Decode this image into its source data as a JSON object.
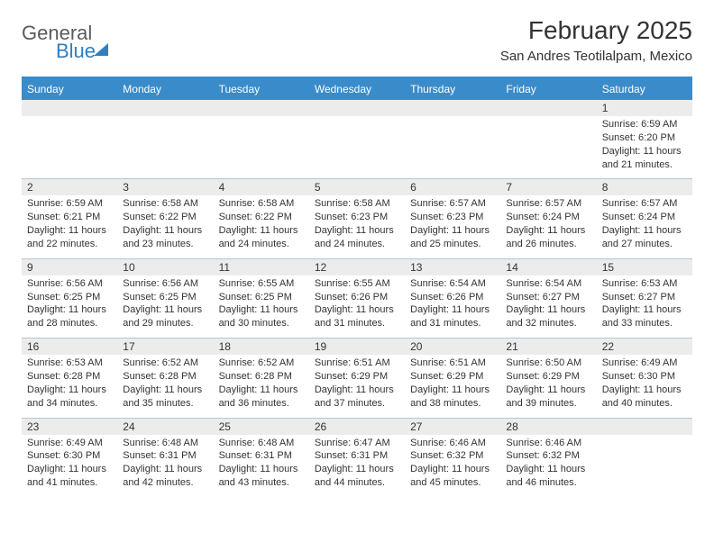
{
  "logo": {
    "text_gray": "General",
    "text_blue": "Blue"
  },
  "title": "February 2025",
  "location": "San Andres Teotilalpam, Mexico",
  "colors": {
    "header_bg": "#3a8bc9",
    "header_text": "#ffffff",
    "daynum_bg": "#ececec",
    "border": "#b8c5d0",
    "text": "#333333",
    "logo_gray": "#5a5a5a",
    "logo_blue": "#2f7fc2"
  },
  "day_headers": [
    "Sunday",
    "Monday",
    "Tuesday",
    "Wednesday",
    "Thursday",
    "Friday",
    "Saturday"
  ],
  "weeks": [
    [
      {
        "n": "",
        "sr": "",
        "ss": "",
        "dl": ""
      },
      {
        "n": "",
        "sr": "",
        "ss": "",
        "dl": ""
      },
      {
        "n": "",
        "sr": "",
        "ss": "",
        "dl": ""
      },
      {
        "n": "",
        "sr": "",
        "ss": "",
        "dl": ""
      },
      {
        "n": "",
        "sr": "",
        "ss": "",
        "dl": ""
      },
      {
        "n": "",
        "sr": "",
        "ss": "",
        "dl": ""
      },
      {
        "n": "1",
        "sr": "Sunrise: 6:59 AM",
        "ss": "Sunset: 6:20 PM",
        "dl": "Daylight: 11 hours and 21 minutes."
      }
    ],
    [
      {
        "n": "2",
        "sr": "Sunrise: 6:59 AM",
        "ss": "Sunset: 6:21 PM",
        "dl": "Daylight: 11 hours and 22 minutes."
      },
      {
        "n": "3",
        "sr": "Sunrise: 6:58 AM",
        "ss": "Sunset: 6:22 PM",
        "dl": "Daylight: 11 hours and 23 minutes."
      },
      {
        "n": "4",
        "sr": "Sunrise: 6:58 AM",
        "ss": "Sunset: 6:22 PM",
        "dl": "Daylight: 11 hours and 24 minutes."
      },
      {
        "n": "5",
        "sr": "Sunrise: 6:58 AM",
        "ss": "Sunset: 6:23 PM",
        "dl": "Daylight: 11 hours and 24 minutes."
      },
      {
        "n": "6",
        "sr": "Sunrise: 6:57 AM",
        "ss": "Sunset: 6:23 PM",
        "dl": "Daylight: 11 hours and 25 minutes."
      },
      {
        "n": "7",
        "sr": "Sunrise: 6:57 AM",
        "ss": "Sunset: 6:24 PM",
        "dl": "Daylight: 11 hours and 26 minutes."
      },
      {
        "n": "8",
        "sr": "Sunrise: 6:57 AM",
        "ss": "Sunset: 6:24 PM",
        "dl": "Daylight: 11 hours and 27 minutes."
      }
    ],
    [
      {
        "n": "9",
        "sr": "Sunrise: 6:56 AM",
        "ss": "Sunset: 6:25 PM",
        "dl": "Daylight: 11 hours and 28 minutes."
      },
      {
        "n": "10",
        "sr": "Sunrise: 6:56 AM",
        "ss": "Sunset: 6:25 PM",
        "dl": "Daylight: 11 hours and 29 minutes."
      },
      {
        "n": "11",
        "sr": "Sunrise: 6:55 AM",
        "ss": "Sunset: 6:25 PM",
        "dl": "Daylight: 11 hours and 30 minutes."
      },
      {
        "n": "12",
        "sr": "Sunrise: 6:55 AM",
        "ss": "Sunset: 6:26 PM",
        "dl": "Daylight: 11 hours and 31 minutes."
      },
      {
        "n": "13",
        "sr": "Sunrise: 6:54 AM",
        "ss": "Sunset: 6:26 PM",
        "dl": "Daylight: 11 hours and 31 minutes."
      },
      {
        "n": "14",
        "sr": "Sunrise: 6:54 AM",
        "ss": "Sunset: 6:27 PM",
        "dl": "Daylight: 11 hours and 32 minutes."
      },
      {
        "n": "15",
        "sr": "Sunrise: 6:53 AM",
        "ss": "Sunset: 6:27 PM",
        "dl": "Daylight: 11 hours and 33 minutes."
      }
    ],
    [
      {
        "n": "16",
        "sr": "Sunrise: 6:53 AM",
        "ss": "Sunset: 6:28 PM",
        "dl": "Daylight: 11 hours and 34 minutes."
      },
      {
        "n": "17",
        "sr": "Sunrise: 6:52 AM",
        "ss": "Sunset: 6:28 PM",
        "dl": "Daylight: 11 hours and 35 minutes."
      },
      {
        "n": "18",
        "sr": "Sunrise: 6:52 AM",
        "ss": "Sunset: 6:28 PM",
        "dl": "Daylight: 11 hours and 36 minutes."
      },
      {
        "n": "19",
        "sr": "Sunrise: 6:51 AM",
        "ss": "Sunset: 6:29 PM",
        "dl": "Daylight: 11 hours and 37 minutes."
      },
      {
        "n": "20",
        "sr": "Sunrise: 6:51 AM",
        "ss": "Sunset: 6:29 PM",
        "dl": "Daylight: 11 hours and 38 minutes."
      },
      {
        "n": "21",
        "sr": "Sunrise: 6:50 AM",
        "ss": "Sunset: 6:29 PM",
        "dl": "Daylight: 11 hours and 39 minutes."
      },
      {
        "n": "22",
        "sr": "Sunrise: 6:49 AM",
        "ss": "Sunset: 6:30 PM",
        "dl": "Daylight: 11 hours and 40 minutes."
      }
    ],
    [
      {
        "n": "23",
        "sr": "Sunrise: 6:49 AM",
        "ss": "Sunset: 6:30 PM",
        "dl": "Daylight: 11 hours and 41 minutes."
      },
      {
        "n": "24",
        "sr": "Sunrise: 6:48 AM",
        "ss": "Sunset: 6:31 PM",
        "dl": "Daylight: 11 hours and 42 minutes."
      },
      {
        "n": "25",
        "sr": "Sunrise: 6:48 AM",
        "ss": "Sunset: 6:31 PM",
        "dl": "Daylight: 11 hours and 43 minutes."
      },
      {
        "n": "26",
        "sr": "Sunrise: 6:47 AM",
        "ss": "Sunset: 6:31 PM",
        "dl": "Daylight: 11 hours and 44 minutes."
      },
      {
        "n": "27",
        "sr": "Sunrise: 6:46 AM",
        "ss": "Sunset: 6:32 PM",
        "dl": "Daylight: 11 hours and 45 minutes."
      },
      {
        "n": "28",
        "sr": "Sunrise: 6:46 AM",
        "ss": "Sunset: 6:32 PM",
        "dl": "Daylight: 11 hours and 46 minutes."
      },
      {
        "n": "",
        "sr": "",
        "ss": "",
        "dl": ""
      }
    ]
  ]
}
